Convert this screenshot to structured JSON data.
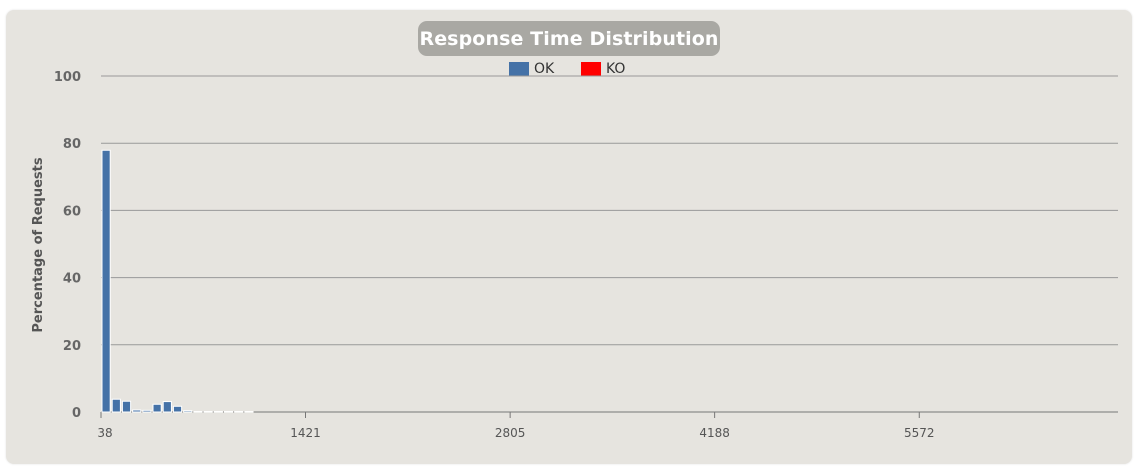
{
  "chart_data": {
    "type": "bar",
    "title": "Response Time Distribution",
    "ylabel": "Percentage of Requests",
    "xlabel": "",
    "ylim": [
      0,
      100
    ],
    "yticks": [
      "0",
      "20",
      "40",
      "60",
      "80",
      "100"
    ],
    "xticks": [
      "38",
      "1421",
      "2805",
      "4188",
      "5572"
    ],
    "xlim": [
      38,
      6916
    ],
    "legend_position": "top-center",
    "series": [
      {
        "name": "OK",
        "color": "#4572a7",
        "points": [
          {
            "x": 38,
            "y": 77.9
          },
          {
            "x": 107,
            "y": 3.8
          },
          {
            "x": 176,
            "y": 3.2
          },
          {
            "x": 245,
            "y": 0.6
          },
          {
            "x": 314,
            "y": 0.5
          },
          {
            "x": 383,
            "y": 2.3
          },
          {
            "x": 452,
            "y": 3.1
          },
          {
            "x": 521,
            "y": 1.7
          },
          {
            "x": 590,
            "y": 0.4
          },
          {
            "x": 659,
            "y": 0.1
          },
          {
            "x": 728,
            "y": 0.1
          },
          {
            "x": 797,
            "y": 0.1
          },
          {
            "x": 866,
            "y": 0.1
          },
          {
            "x": 935,
            "y": 0.1
          },
          {
            "x": 1004,
            "y": 0.1
          }
        ]
      },
      {
        "name": "KO",
        "color": "#ff0000",
        "points": []
      }
    ]
  }
}
